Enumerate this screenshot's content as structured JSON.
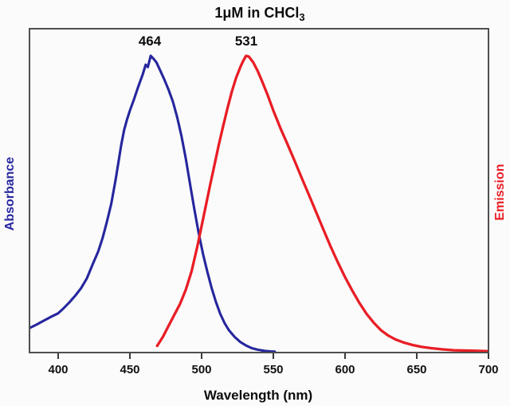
{
  "title": {
    "text": "1μM in CHCl",
    "subscript": "3"
  },
  "annotations": {
    "absorbance_peak": "464",
    "emission_peak": "531"
  },
  "axes": {
    "x": {
      "label": "Wavelength (nm)",
      "min": 380,
      "max": 700,
      "ticks": [
        {
          "wl": 400,
          "label": "400"
        },
        {
          "wl": 450,
          "label": "450"
        },
        {
          "wl": 500,
          "label": "500"
        },
        {
          "wl": 550,
          "label": "550"
        },
        {
          "wl": 600,
          "label": "600"
        },
        {
          "wl": 650,
          "label": "650"
        },
        {
          "wl": 700,
          "label": "700"
        }
      ]
    },
    "y_left": {
      "label": "Absorbance"
    },
    "y_right": {
      "label": "Emission"
    }
  },
  "colors": {
    "absorbance": "#26269e",
    "emission": "#e91d25",
    "frame": "#4f4f4f",
    "text": "#0c0c0c",
    "background": "#fbfbfb"
  },
  "chart_data": {
    "type": "line",
    "title": "1μM in CHCl3",
    "xlabel": "Wavelength (nm)",
    "x_range": [
      380,
      700
    ],
    "y_normalized": true,
    "grid": false,
    "series": [
      {
        "name": "Absorbance",
        "color": "#26269e",
        "peak_nm": 464,
        "points": [
          [
            380,
            0.08
          ],
          [
            385,
            0.092
          ],
          [
            390,
            0.105
          ],
          [
            395,
            0.118
          ],
          [
            400,
            0.13
          ],
          [
            404,
            0.148
          ],
          [
            408,
            0.168
          ],
          [
            412,
            0.19
          ],
          [
            416,
            0.215
          ],
          [
            420,
            0.248
          ],
          [
            424,
            0.295
          ],
          [
            428,
            0.34
          ],
          [
            431,
            0.385
          ],
          [
            434,
            0.44
          ],
          [
            437,
            0.5
          ],
          [
            440,
            0.58
          ],
          [
            442,
            0.64
          ],
          [
            444,
            0.7
          ],
          [
            446,
            0.75
          ],
          [
            448,
            0.785
          ],
          [
            450,
            0.815
          ],
          [
            453,
            0.855
          ],
          [
            456,
            0.898
          ],
          [
            459,
            0.938
          ],
          [
            461,
            0.97
          ],
          [
            462.5,
            0.962
          ],
          [
            464.5,
            1.0
          ],
          [
            466.5,
            0.99
          ],
          [
            468.5,
            0.978
          ],
          [
            471,
            0.952
          ],
          [
            474,
            0.92
          ],
          [
            477,
            0.885
          ],
          [
            480,
            0.845
          ],
          [
            483,
            0.792
          ],
          [
            486,
            0.728
          ],
          [
            489,
            0.652
          ],
          [
            492,
            0.565
          ],
          [
            495,
            0.48
          ],
          [
            498,
            0.4
          ],
          [
            501,
            0.33
          ],
          [
            504,
            0.27
          ],
          [
            507,
            0.215
          ],
          [
            510,
            0.168
          ],
          [
            513,
            0.128
          ],
          [
            516,
            0.097
          ],
          [
            519,
            0.073
          ],
          [
            523,
            0.05
          ],
          [
            527,
            0.033
          ],
          [
            531,
            0.021
          ],
          [
            535,
            0.012
          ],
          [
            539,
            0.007
          ],
          [
            544,
            0.003
          ],
          [
            548,
            0.001
          ],
          [
            551,
            0.0005
          ]
        ]
      },
      {
        "name": "Emission",
        "color": "#e91d25",
        "peak_nm": 531,
        "points": [
          [
            469,
            0.02
          ],
          [
            473,
            0.05
          ],
          [
            477,
            0.088
          ],
          [
            481,
            0.125
          ],
          [
            485,
            0.162
          ],
          [
            489,
            0.21
          ],
          [
            493,
            0.272
          ],
          [
            497,
            0.355
          ],
          [
            500,
            0.425
          ],
          [
            503,
            0.495
          ],
          [
            506,
            0.565
          ],
          [
            509,
            0.632
          ],
          [
            512,
            0.7
          ],
          [
            515,
            0.762
          ],
          [
            518,
            0.822
          ],
          [
            521,
            0.878
          ],
          [
            524,
            0.925
          ],
          [
            527,
            0.962
          ],
          [
            529,
            0.983
          ],
          [
            531,
            1.0
          ],
          [
            533,
            0.997
          ],
          [
            536,
            0.978
          ],
          [
            539,
            0.95
          ],
          [
            542,
            0.916
          ],
          [
            546,
            0.868
          ],
          [
            550,
            0.815
          ],
          [
            555,
            0.755
          ],
          [
            560,
            0.7
          ],
          [
            565,
            0.643
          ],
          [
            570,
            0.585
          ],
          [
            575,
            0.528
          ],
          [
            580,
            0.47
          ],
          [
            585,
            0.412
          ],
          [
            590,
            0.355
          ],
          [
            595,
            0.302
          ],
          [
            600,
            0.252
          ],
          [
            605,
            0.207
          ],
          [
            610,
            0.165
          ],
          [
            615,
            0.128
          ],
          [
            620,
            0.098
          ],
          [
            625,
            0.073
          ],
          [
            630,
            0.055
          ],
          [
            635,
            0.042
          ],
          [
            641,
            0.031
          ],
          [
            647,
            0.023
          ],
          [
            653,
            0.017
          ],
          [
            660,
            0.012
          ],
          [
            668,
            0.008
          ],
          [
            676,
            0.005
          ],
          [
            685,
            0.004
          ],
          [
            693,
            0.003
          ],
          [
            700,
            0.002
          ]
        ]
      }
    ]
  }
}
